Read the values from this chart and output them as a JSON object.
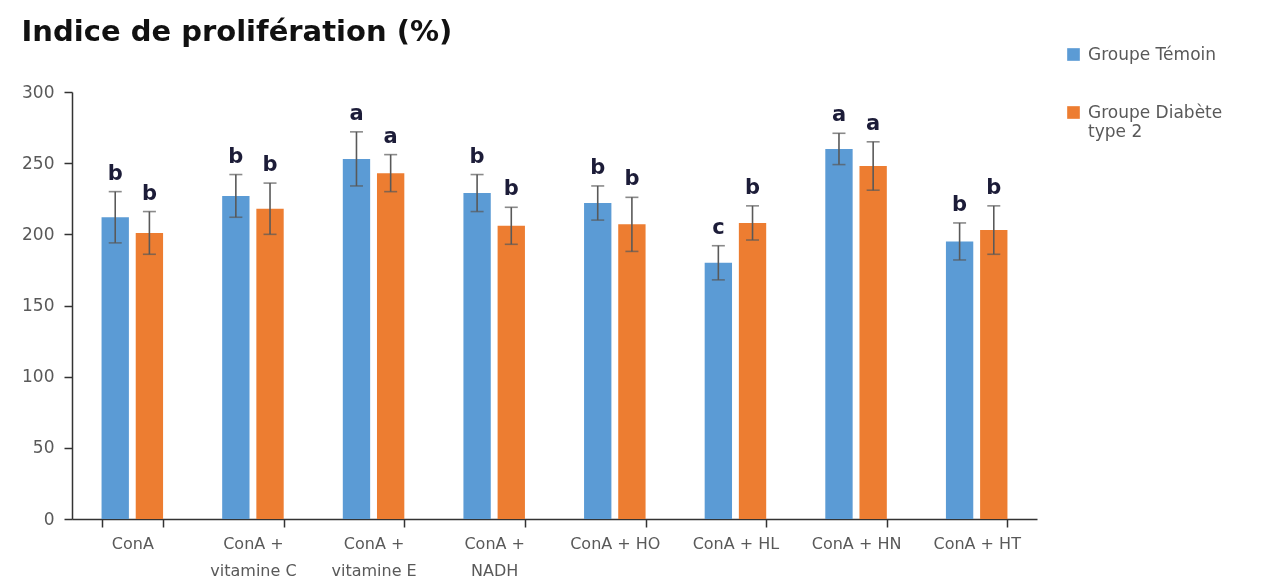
{
  "chart_data": {
    "type": "bar",
    "title": "Indice de prolifération (%)",
    "categories": [
      "ConA",
      "ConA + vitamine C",
      "ConA + vitamine E",
      "ConA + NADH",
      "ConA + HO",
      "ConA + HL",
      "ConA + HN",
      "ConA + HT"
    ],
    "series": [
      {
        "name": "Groupe Témoin",
        "color": "#5b9bd5",
        "values": [
          212,
          227,
          253,
          229,
          222,
          180,
          260,
          195
        ],
        "errors": [
          18,
          15,
          19,
          13,
          12,
          12,
          11,
          13
        ],
        "value_labels": [
          "b",
          "b",
          "a",
          "b",
          "b",
          "c",
          "a",
          "b"
        ]
      },
      {
        "name": "Groupe Diabète type 2",
        "color": "#ed7d31",
        "values": [
          201,
          218,
          243,
          206,
          207,
          208,
          248,
          203
        ],
        "errors": [
          15,
          18,
          13,
          13,
          19,
          12,
          17,
          17
        ],
        "value_labels": [
          "b",
          "b",
          "a",
          "b",
          "b",
          "b",
          "a",
          "b"
        ]
      }
    ],
    "ylim": [
      0,
      300
    ],
    "yticks": [
      0,
      50,
      100,
      150,
      200,
      250,
      300
    ],
    "legend": "right"
  }
}
